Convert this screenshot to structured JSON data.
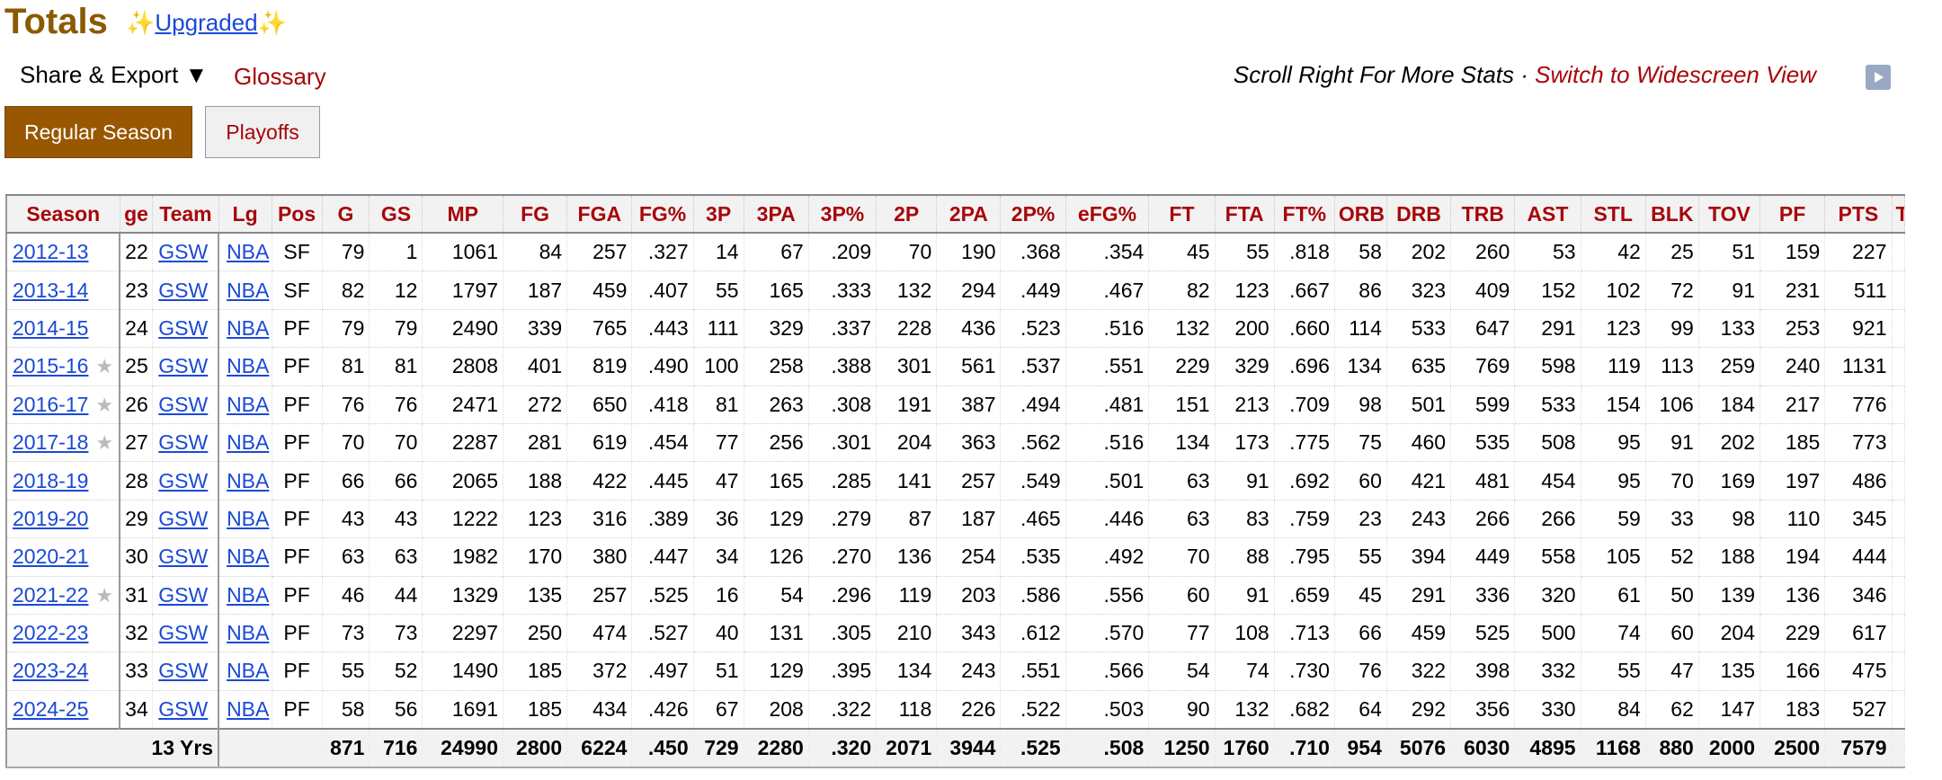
{
  "page": {
    "title": "Totals",
    "upgraded_prefix": "✨",
    "upgraded_label": "Upgraded",
    "upgraded_suffix": "✨",
    "share_label": "Share & Export ▼",
    "glossary_label": "Glossary",
    "scroll_hint": "Scroll Right For More Stats · ",
    "widescreen_label": "Switch to Widescreen View",
    "play_icon": "play-icon"
  },
  "tabs": [
    {
      "label": "Regular Season",
      "active": true
    },
    {
      "label": "Playoffs",
      "active": false
    }
  ],
  "colors": {
    "brand": "#985700",
    "accent_red": "#a8060a",
    "link_blue": "#1a49d6"
  },
  "table": {
    "headers": [
      "Season",
      "ge",
      "Team",
      "Lg",
      "Pos",
      "G",
      "GS",
      "MP",
      "FG",
      "FGA",
      "FG%",
      "3P",
      "3PA",
      "3P%",
      "2P",
      "2PA",
      "2P%",
      "eFG%",
      "FT",
      "FTA",
      "FT%",
      "ORB",
      "DRB",
      "TRB",
      "AST",
      "STL",
      "BLK",
      "TOV",
      "PF",
      "PTS",
      "T"
    ],
    "rows": [
      {
        "season": "2012-13",
        "star": false,
        "age": "22",
        "team": "GSW",
        "lg": "NBA",
        "pos": "SF",
        "stats": [
          "79",
          "1",
          "1061",
          "84",
          "257",
          ".327",
          "14",
          "67",
          ".209",
          "70",
          "190",
          ".368",
          ".354",
          "45",
          "55",
          ".818",
          "58",
          "202",
          "260",
          "53",
          "42",
          "25",
          "51",
          "159",
          "227"
        ]
      },
      {
        "season": "2013-14",
        "star": false,
        "age": "23",
        "team": "GSW",
        "lg": "NBA",
        "pos": "SF",
        "stats": [
          "82",
          "12",
          "1797",
          "187",
          "459",
          ".407",
          "55",
          "165",
          ".333",
          "132",
          "294",
          ".449",
          ".467",
          "82",
          "123",
          ".667",
          "86",
          "323",
          "409",
          "152",
          "102",
          "72",
          "91",
          "231",
          "511"
        ]
      },
      {
        "season": "2014-15",
        "star": false,
        "age": "24",
        "team": "GSW",
        "lg": "NBA",
        "pos": "PF",
        "stats": [
          "79",
          "79",
          "2490",
          "339",
          "765",
          ".443",
          "111",
          "329",
          ".337",
          "228",
          "436",
          ".523",
          ".516",
          "132",
          "200",
          ".660",
          "114",
          "533",
          "647",
          "291",
          "123",
          "99",
          "133",
          "253",
          "921"
        ]
      },
      {
        "season": "2015-16",
        "star": true,
        "age": "25",
        "team": "GSW",
        "lg": "NBA",
        "pos": "PF",
        "stats": [
          "81",
          "81",
          "2808",
          "401",
          "819",
          ".490",
          "100",
          "258",
          ".388",
          "301",
          "561",
          ".537",
          ".551",
          "229",
          "329",
          ".696",
          "134",
          "635",
          "769",
          "598",
          "119",
          "113",
          "259",
          "240",
          "1131"
        ]
      },
      {
        "season": "2016-17",
        "star": true,
        "age": "26",
        "team": "GSW",
        "lg": "NBA",
        "pos": "PF",
        "stats": [
          "76",
          "76",
          "2471",
          "272",
          "650",
          ".418",
          "81",
          "263",
          ".308",
          "191",
          "387",
          ".494",
          ".481",
          "151",
          "213",
          ".709",
          "98",
          "501",
          "599",
          "533",
          "154",
          "106",
          "184",
          "217",
          "776"
        ]
      },
      {
        "season": "2017-18",
        "star": true,
        "age": "27",
        "team": "GSW",
        "lg": "NBA",
        "pos": "PF",
        "stats": [
          "70",
          "70",
          "2287",
          "281",
          "619",
          ".454",
          "77",
          "256",
          ".301",
          "204",
          "363",
          ".562",
          ".516",
          "134",
          "173",
          ".775",
          "75",
          "460",
          "535",
          "508",
          "95",
          "91",
          "202",
          "185",
          "773"
        ]
      },
      {
        "season": "2018-19",
        "star": false,
        "age": "28",
        "team": "GSW",
        "lg": "NBA",
        "pos": "PF",
        "stats": [
          "66",
          "66",
          "2065",
          "188",
          "422",
          ".445",
          "47",
          "165",
          ".285",
          "141",
          "257",
          ".549",
          ".501",
          "63",
          "91",
          ".692",
          "60",
          "421",
          "481",
          "454",
          "95",
          "70",
          "169",
          "197",
          "486"
        ]
      },
      {
        "season": "2019-20",
        "star": false,
        "age": "29",
        "team": "GSW",
        "lg": "NBA",
        "pos": "PF",
        "stats": [
          "43",
          "43",
          "1222",
          "123",
          "316",
          ".389",
          "36",
          "129",
          ".279",
          "87",
          "187",
          ".465",
          ".446",
          "63",
          "83",
          ".759",
          "23",
          "243",
          "266",
          "266",
          "59",
          "33",
          "98",
          "110",
          "345"
        ]
      },
      {
        "season": "2020-21",
        "star": false,
        "age": "30",
        "team": "GSW",
        "lg": "NBA",
        "pos": "PF",
        "stats": [
          "63",
          "63",
          "1982",
          "170",
          "380",
          ".447",
          "34",
          "126",
          ".270",
          "136",
          "254",
          ".535",
          ".492",
          "70",
          "88",
          ".795",
          "55",
          "394",
          "449",
          "558",
          "105",
          "52",
          "188",
          "194",
          "444"
        ]
      },
      {
        "season": "2021-22",
        "star": true,
        "age": "31",
        "team": "GSW",
        "lg": "NBA",
        "pos": "PF",
        "stats": [
          "46",
          "44",
          "1329",
          "135",
          "257",
          ".525",
          "16",
          "54",
          ".296",
          "119",
          "203",
          ".586",
          ".556",
          "60",
          "91",
          ".659",
          "45",
          "291",
          "336",
          "320",
          "61",
          "50",
          "139",
          "136",
          "346"
        ]
      },
      {
        "season": "2022-23",
        "star": false,
        "age": "32",
        "team": "GSW",
        "lg": "NBA",
        "pos": "PF",
        "stats": [
          "73",
          "73",
          "2297",
          "250",
          "474",
          ".527",
          "40",
          "131",
          ".305",
          "210",
          "343",
          ".612",
          ".570",
          "77",
          "108",
          ".713",
          "66",
          "459",
          "525",
          "500",
          "74",
          "60",
          "204",
          "229",
          "617"
        ]
      },
      {
        "season": "2023-24",
        "star": false,
        "age": "33",
        "team": "GSW",
        "lg": "NBA",
        "pos": "PF",
        "stats": [
          "55",
          "52",
          "1490",
          "185",
          "372",
          ".497",
          "51",
          "129",
          ".395",
          "134",
          "243",
          ".551",
          ".566",
          "54",
          "74",
          ".730",
          "76",
          "322",
          "398",
          "332",
          "55",
          "47",
          "135",
          "166",
          "475"
        ]
      },
      {
        "season": "2024-25",
        "star": false,
        "age": "34",
        "team": "GSW",
        "lg": "NBA",
        "pos": "PF",
        "stats": [
          "58",
          "56",
          "1691",
          "185",
          "434",
          ".426",
          "67",
          "208",
          ".322",
          "118",
          "226",
          ".522",
          ".503",
          "90",
          "132",
          ".682",
          "64",
          "292",
          "356",
          "330",
          "84",
          "62",
          "147",
          "183",
          "527"
        ]
      }
    ],
    "footer": {
      "label": "13 Yrs",
      "stats": [
        "871",
        "716",
        "24990",
        "2800",
        "6224",
        ".450",
        "729",
        "2280",
        ".320",
        "2071",
        "3944",
        ".525",
        ".508",
        "1250",
        "1760",
        ".710",
        "954",
        "5076",
        "6030",
        "4895",
        "1168",
        "880",
        "2000",
        "2500",
        "7579"
      ]
    }
  }
}
